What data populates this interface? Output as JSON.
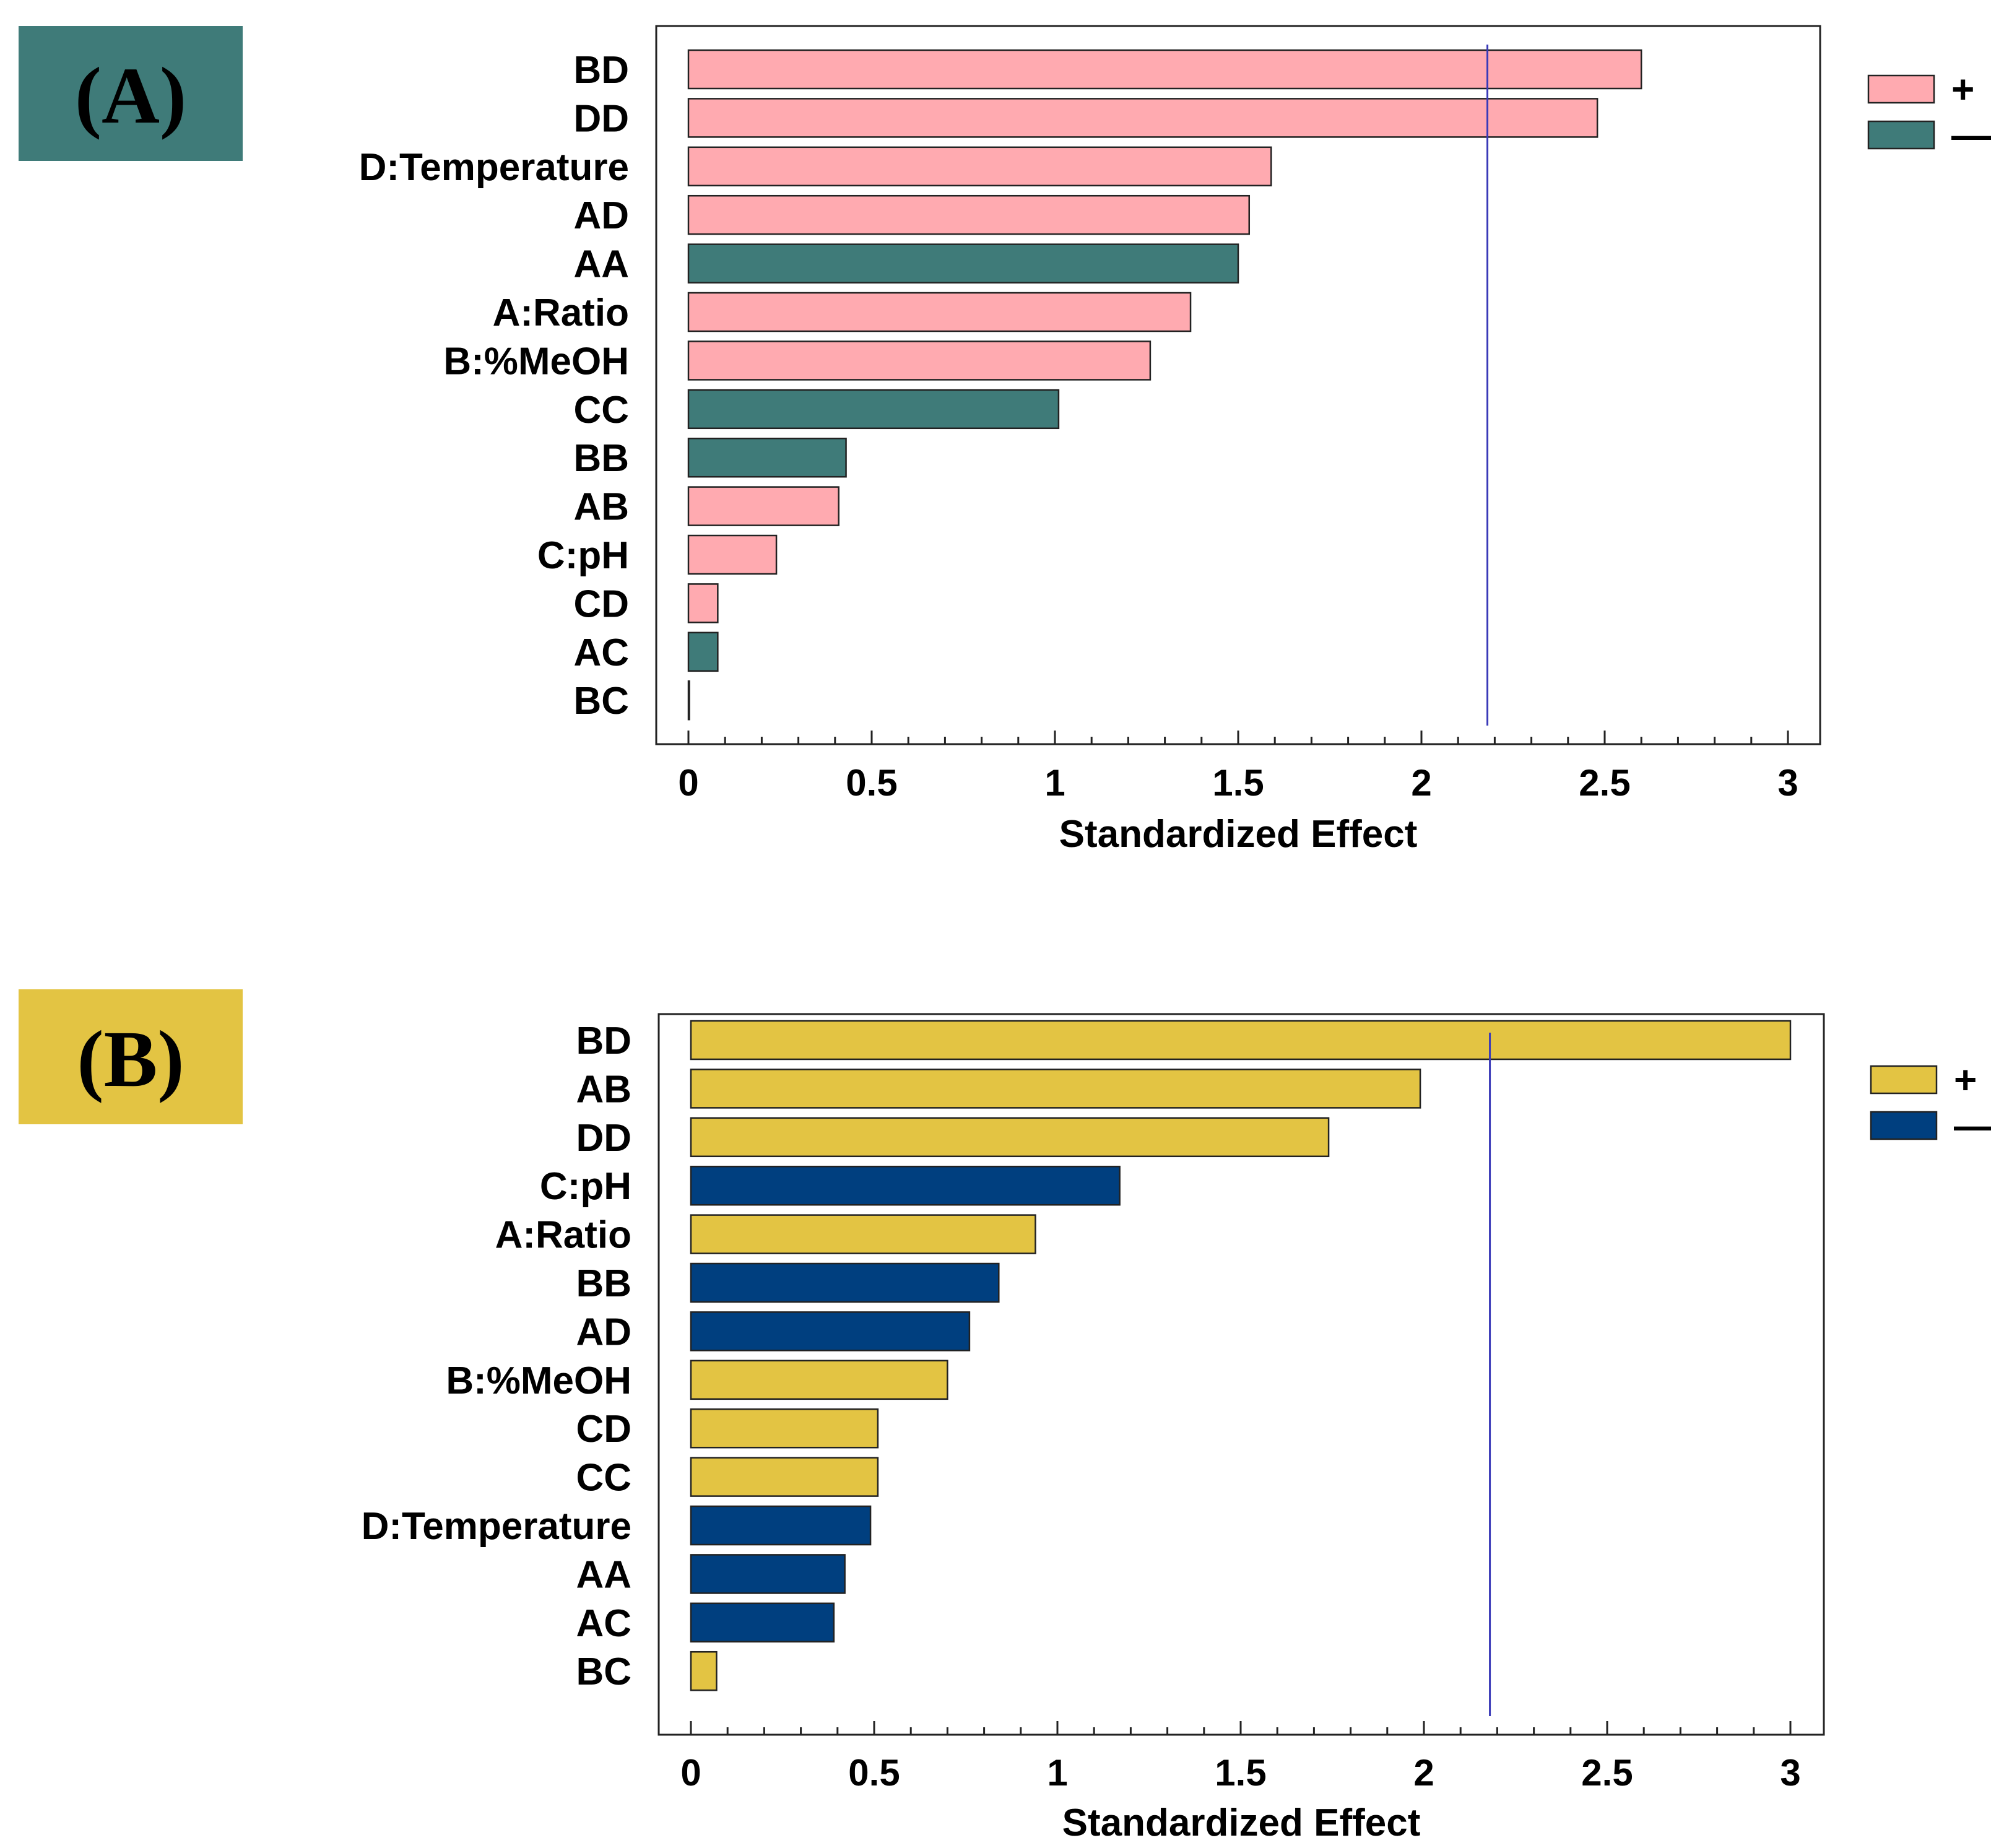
{
  "chart_data": [
    {
      "type": "bar",
      "orientation": "horizontal",
      "panel_label": "(A)",
      "panel_color": "#3f7b79",
      "xlabel": "Standardized Effect",
      "xlim": [
        0,
        3
      ],
      "xticks": [
        "0",
        "0.5",
        "1",
        "1.5",
        "2",
        "2.5",
        "3"
      ],
      "reference_line": 2.18,
      "legend": [
        {
          "label": "+",
          "color": "#ffaab0"
        },
        {
          "label": "—",
          "color": "#3f7b79"
        }
      ],
      "categories": [
        "BD",
        "DD",
        "D:Temperature",
        "AD",
        "AA",
        "A:Ratio",
        "B:%MeOH",
        "CC",
        "BB",
        "AB",
        "C:pH",
        "CD",
        "AC",
        "BC"
      ],
      "values": [
        2.6,
        2.48,
        1.59,
        1.53,
        1.5,
        1.37,
        1.26,
        1.01,
        0.43,
        0.41,
        0.24,
        0.08,
        0.08,
        0.0
      ],
      "signs": [
        "+",
        "+",
        "+",
        "+",
        "-",
        "+",
        "+",
        "-",
        "-",
        "+",
        "+",
        "+",
        "-",
        "+"
      ]
    },
    {
      "type": "bar",
      "orientation": "horizontal",
      "panel_label": "(B)",
      "panel_color": "#e3c443",
      "xlabel": "Standardized Effect",
      "xlim": [
        0,
        3
      ],
      "xticks": [
        "0",
        "0.5",
        "1",
        "1.5",
        "2",
        "2.5",
        "3"
      ],
      "reference_line": 2.18,
      "legend": [
        {
          "label": "+",
          "color": "#e3c443"
        },
        {
          "label": "—",
          "color": "#003f7f"
        }
      ],
      "categories": [
        "BD",
        "AB",
        "DD",
        "C:pH",
        "A:Ratio",
        "BB",
        "AD",
        "B:%MeOH",
        "CD",
        "CC",
        "D:Temperature",
        "AA",
        "AC",
        "BC"
      ],
      "values": [
        3.0,
        1.99,
        1.74,
        1.17,
        0.94,
        0.84,
        0.76,
        0.7,
        0.51,
        0.51,
        0.49,
        0.42,
        0.39,
        0.07
      ],
      "signs": [
        "+",
        "+",
        "+",
        "-",
        "+",
        "-",
        "-",
        "+",
        "+",
        "+",
        "-",
        "-",
        "-",
        "+"
      ]
    }
  ]
}
